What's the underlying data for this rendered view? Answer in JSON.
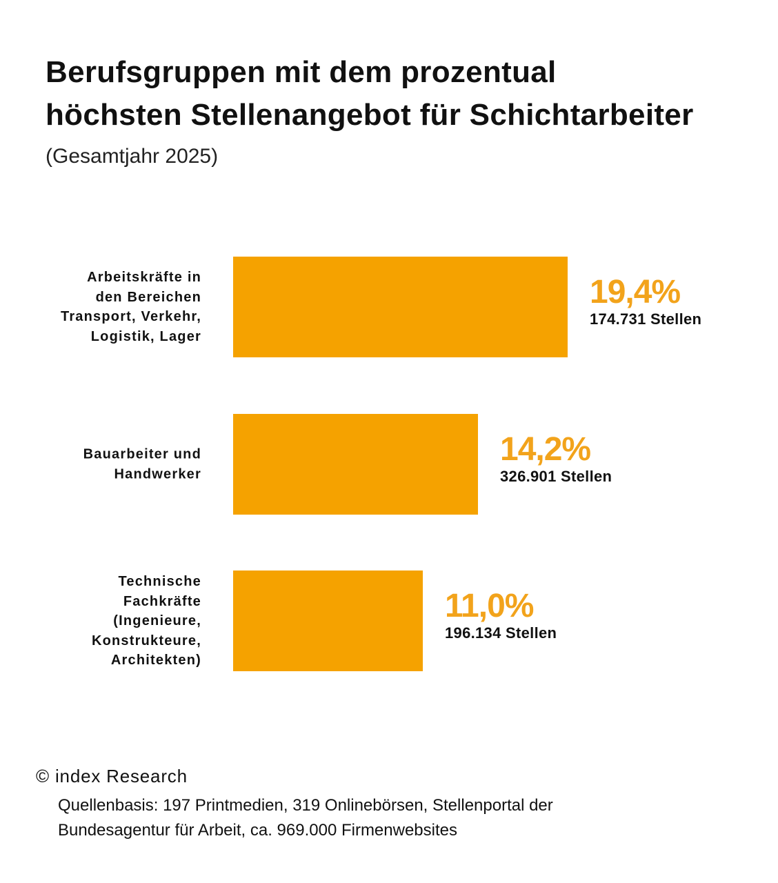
{
  "chart_data": {
    "type": "bar",
    "orientation": "horizontal",
    "title": "Berufsgruppen mit dem prozentual\nhöchsten Stellenangebot für Schichtarbeiter",
    "subtitle": "(Gesamtjahr 2025)",
    "categories": [
      "Arbeitskräfte in\nden Bereichen\nTransport, Verkehr,\nLogistik, Lager",
      "Bauarbeiter und\nHandwerker",
      "Technische\nFachkräfte\n(Ingenieure,\nKonstrukteure,\nArchitekten)"
    ],
    "values": [
      19.4,
      14.2,
      11.0
    ],
    "value_labels": [
      "19,4%",
      "14,2%",
      "11,0%"
    ],
    "secondary_labels": [
      "174.731 Stellen",
      "326.901 Stellen",
      "196.134 Stellen"
    ],
    "unit": "%",
    "grid": false,
    "colors": {
      "bar": "#F5A200",
      "value_text": "#F2A31B",
      "text": "#111111"
    }
  },
  "footer": {
    "copyright": "© index Research",
    "source": "Quellenbasis: 197 Printmedien, 319 Onlinebörsen, Stellenportal der\nBundesagentur für Arbeit, ca. 969.000 Firmenwebsites"
  }
}
